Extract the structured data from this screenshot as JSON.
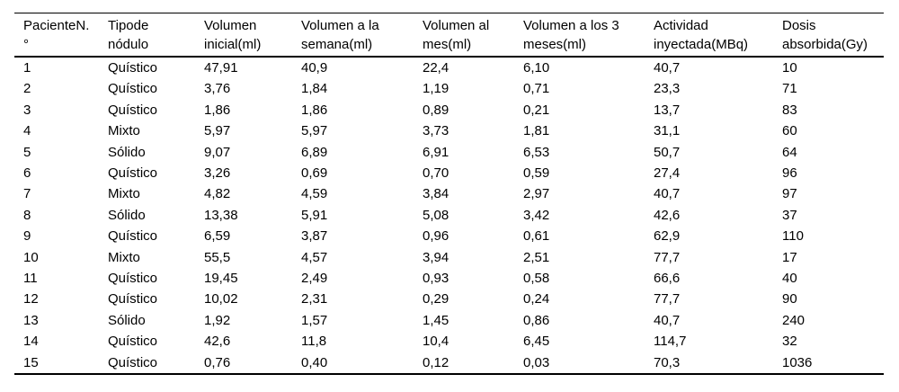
{
  "table": {
    "description": "Tabla de pacientes con nódulo tiroideo: volúmenes, actividad inyectada y dosis absorbida",
    "text_color": "#000000",
    "background_color": "#ffffff",
    "rule_color": "#000000",
    "header": [
      {
        "line1": "PacienteN.",
        "line2": "°"
      },
      {
        "line1": "Tipode",
        "line2": "nódulo"
      },
      {
        "line1": "Volumen",
        "line2": "inicial(ml)"
      },
      {
        "line1": "Volumen a la",
        "line2": "semana(ml)"
      },
      {
        "line1": "Volumen al",
        "line2": "mes(ml)"
      },
      {
        "line1": "Volumen a los 3",
        "line2": "meses(ml)"
      },
      {
        "line1": "Actividad",
        "line2": "inyectada(MBq)"
      },
      {
        "line1": "Dosis",
        "line2": "absorbida(Gy)"
      }
    ],
    "rows": [
      [
        "1",
        "Quístico",
        "47,91",
        "40,9",
        "22,4",
        "6,10",
        "40,7",
        "10"
      ],
      [
        "2",
        "Quístico",
        "3,76",
        "1,84",
        "1,19",
        "0,71",
        "23,3",
        "71"
      ],
      [
        "3",
        "Quístico",
        "1,86",
        "1,86",
        "0,89",
        "0,21",
        "13,7",
        "83"
      ],
      [
        "4",
        "Mixto",
        "5,97",
        "5,97",
        "3,73",
        "1,81",
        "31,1",
        "60"
      ],
      [
        "5",
        "Sólido",
        "9,07",
        "6,89",
        "6,91",
        "6,53",
        "50,7",
        "64"
      ],
      [
        "6",
        "Quístico",
        "3,26",
        "0,69",
        "0,70",
        "0,59",
        "27,4",
        "96"
      ],
      [
        "7",
        "Mixto",
        "4,82",
        "4,59",
        "3,84",
        "2,97",
        "40,7",
        "97"
      ],
      [
        "8",
        "Sólido",
        "13,38",
        "5,91",
        "5,08",
        "3,42",
        "42,6",
        "37"
      ],
      [
        "9",
        "Quístico",
        "6,59",
        "3,87",
        "0,96",
        "0,61",
        "62,9",
        "110"
      ],
      [
        "10",
        "Mixto",
        "55,5",
        "4,57",
        "3,94",
        "2,51",
        "77,7",
        "17"
      ],
      [
        "11",
        "Quístico",
        "19,45",
        "2,49",
        "0,93",
        "0,58",
        "66,6",
        "40"
      ],
      [
        "12",
        "Quístico",
        "10,02",
        "2,31",
        "0,29",
        "0,24",
        "77,7",
        "90"
      ],
      [
        "13",
        "Sólido",
        "1,92",
        "1,57",
        "1,45",
        "0,86",
        "40,7",
        "240"
      ],
      [
        "14",
        "Quístico",
        "42,6",
        "11,8",
        "10,4",
        "6,45",
        "114,7",
        "32"
      ],
      [
        "15",
        "Quístico",
        "0,76",
        "0,40",
        "0,12",
        "0,03",
        "70,3",
        "1036"
      ]
    ]
  }
}
